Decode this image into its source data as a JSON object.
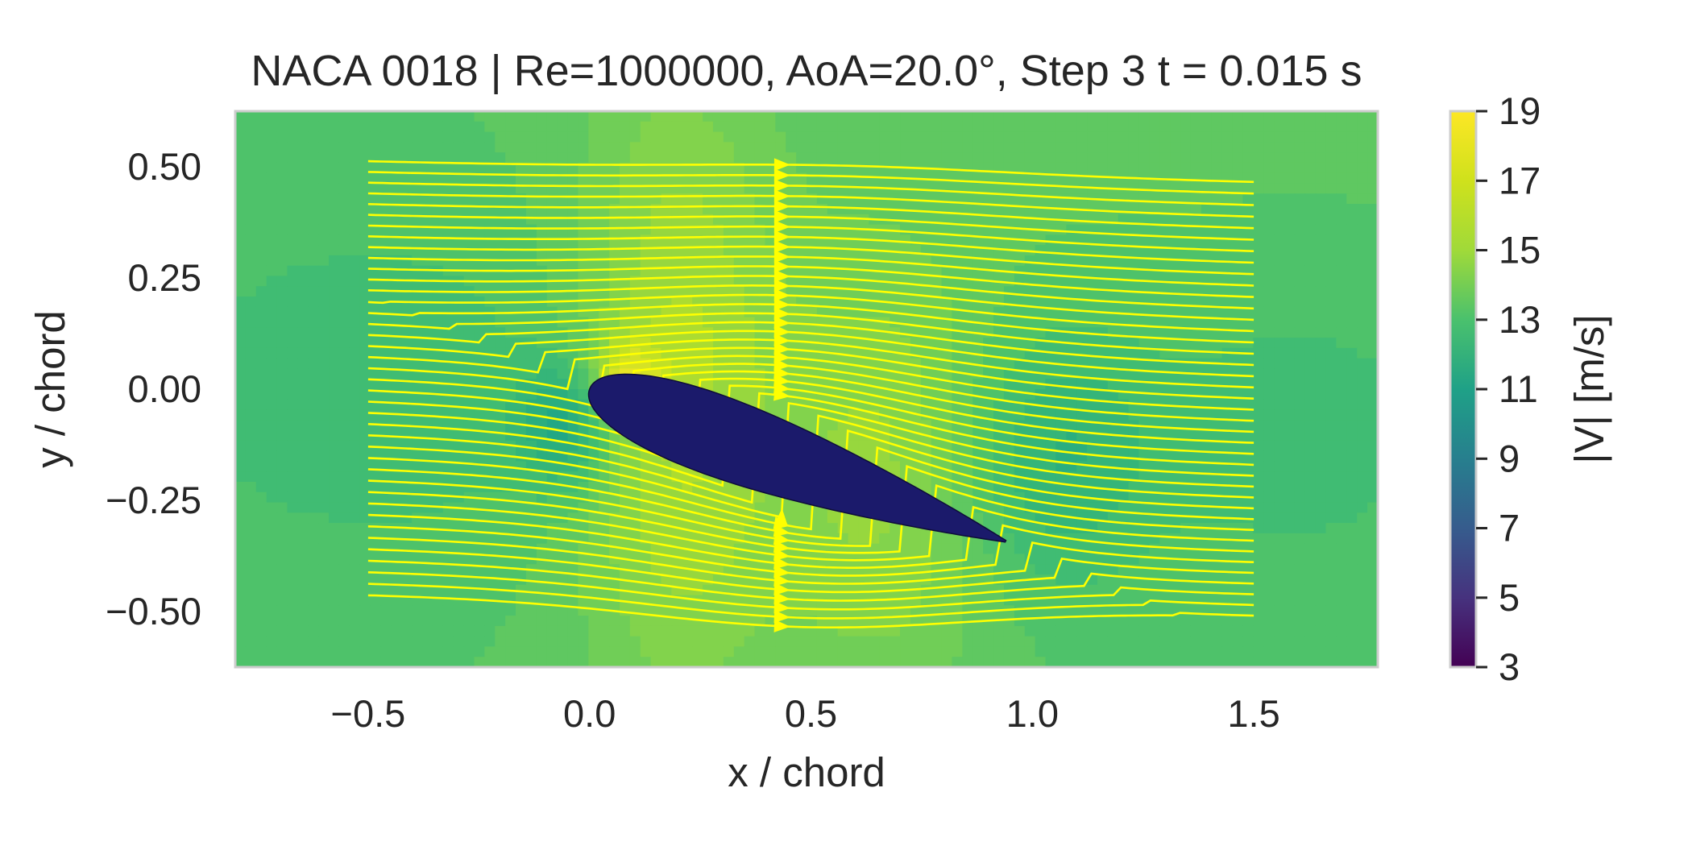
{
  "chart_data": {
    "type": "heatmap",
    "title": "NACA 0018 | Re=1000000, AoA=20.0°, Step 3   t = 0.015 s",
    "xlabel": "x / chord",
    "ylabel": "y / chord",
    "xlim": [
      -0.8,
      1.78
    ],
    "ylim": [
      -0.625,
      0.625
    ],
    "x_ticks": [
      "−0.5",
      "0.0",
      "0.5",
      "1.0",
      "1.5"
    ],
    "x_tick_values": [
      -0.5,
      0.0,
      0.5,
      1.0,
      1.5
    ],
    "y_ticks": [
      "0.50",
      "0.25",
      "0.00",
      "−0.25",
      "−0.50"
    ],
    "y_tick_values": [
      0.5,
      0.25,
      0.0,
      -0.25,
      -0.5
    ],
    "colorbar": {
      "label": "|V| [m/s]",
      "range": [
        3,
        19
      ],
      "ticks": [
        "19",
        "17",
        "15",
        "13",
        "11",
        "9",
        "7",
        "5",
        "3"
      ],
      "tick_values": [
        19,
        17,
        15,
        13,
        11,
        9,
        7,
        5,
        3
      ],
      "colormap": "viridis"
    },
    "field": {
      "freestream_speed": 14.8,
      "speed_min": 10.5,
      "speed_max": 18.5
    },
    "airfoil": {
      "name": "NACA 0018",
      "thickness_ratio": 0.18,
      "angle_of_attack_deg": 20.0,
      "chord": 1.0,
      "leading_edge": [
        0.0,
        0.0
      ],
      "color": "#1b1a6b"
    },
    "streamlines": {
      "color": "#ffff00",
      "x_range": [
        -0.5,
        1.5
      ],
      "seed_y": [
        0.49,
        0.465,
        0.44,
        0.415,
        0.39,
        0.365,
        0.34,
        0.315,
        0.29,
        0.265,
        0.24,
        0.215,
        0.19,
        0.165,
        0.14,
        0.115,
        0.09,
        0.065,
        0.04,
        0.015,
        -0.01,
        -0.035,
        -0.06,
        -0.085,
        -0.11,
        -0.135,
        -0.16,
        -0.185,
        -0.21,
        -0.235,
        -0.26,
        -0.285,
        -0.31,
        -0.335,
        -0.36,
        -0.385,
        -0.41,
        -0.435,
        -0.46,
        -0.485
      ],
      "arrow_x": 0.43
    }
  }
}
